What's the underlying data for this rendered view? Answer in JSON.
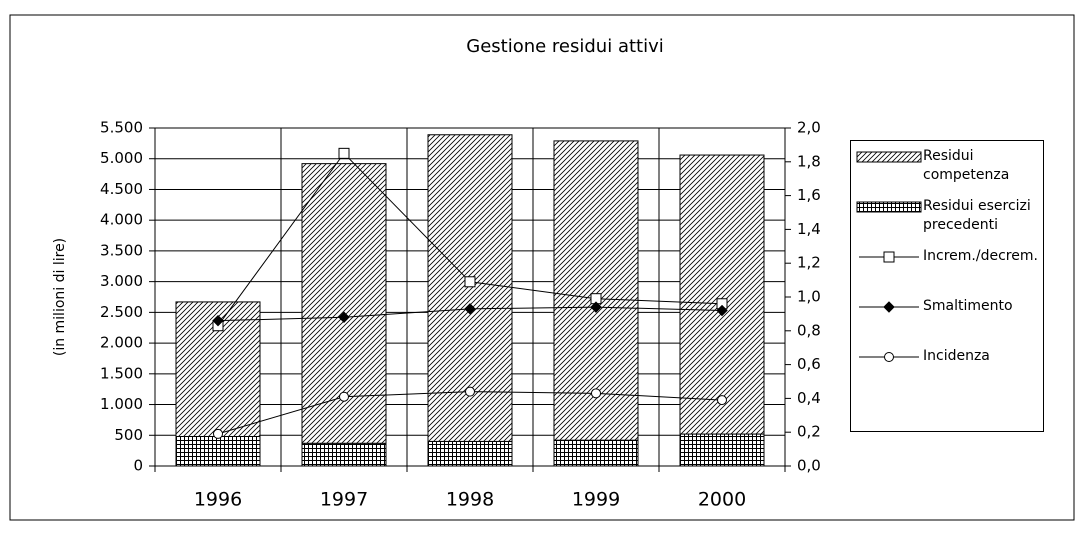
{
  "chart_data": {
    "type": "bar",
    "title": "Gestione residui attivi",
    "y_label": "(in milioni di lire)",
    "categories": [
      "1996",
      "1997",
      "1998",
      "1999",
      "2000"
    ],
    "series": [
      {
        "name": "Residui competenza",
        "type": "bar",
        "pattern": "hatch",
        "color": "#000000",
        "values": [
          2190,
          4550,
          4990,
          4870,
          4540
        ]
      },
      {
        "name": "Residui esercizi precedenti",
        "type": "bar",
        "pattern": "grid",
        "color": "#000000",
        "values": [
          480,
          370,
          400,
          420,
          520
        ]
      },
      {
        "name": "Increm./decrem.",
        "type": "line",
        "marker": "square",
        "axis": "y2",
        "color": "#000000",
        "values": [
          0.83,
          1.85,
          1.09,
          0.99,
          0.96
        ]
      },
      {
        "name": "Smaltimento",
        "type": "line",
        "marker": "diamond",
        "axis": "y2",
        "color": "#000000",
        "values": [
          0.86,
          0.88,
          0.93,
          0.94,
          0.92
        ]
      },
      {
        "name": "Incidenza",
        "type": "line",
        "marker": "circle",
        "axis": "y2",
        "color": "#000000",
        "values": [
          0.19,
          0.41,
          0.44,
          0.43,
          0.39
        ]
      }
    ],
    "ylim": [
      0,
      5500
    ],
    "yticks": [
      0,
      500,
      {
        "value": 1000,
        "label": "1.000"
      },
      {
        "value": 1500,
        "label": "1.500"
      },
      {
        "value": 2000,
        "label": "2.000"
      },
      {
        "value": 2500,
        "label": "2.500"
      },
      {
        "value": 3000,
        "label": "3.000"
      },
      {
        "value": 3500,
        "label": "3.500"
      },
      {
        "value": 4000,
        "label": "4.000"
      },
      {
        "value": 4500,
        "label": "4.500"
      },
      {
        "value": 5000,
        "label": "5.000"
      },
      {
        "value": 5500,
        "label": "5.500"
      }
    ],
    "y2lim": [
      0,
      2
    ],
    "y2ticks": [
      {
        "value": 0,
        "label": "0,0"
      },
      {
        "value": 0.2,
        "label": "0,2"
      },
      {
        "value": 0.4,
        "label": "0,4"
      },
      {
        "value": 0.6,
        "label": "0,6"
      },
      {
        "value": 0.8,
        "label": "0,8"
      },
      {
        "value": 1.0,
        "label": "1,0"
      },
      {
        "value": 1.2,
        "label": "1,2"
      },
      {
        "value": 1.4,
        "label": "1,4"
      },
      {
        "value": 1.6,
        "label": "1,6"
      },
      {
        "value": 1.8,
        "label": "1,8"
      },
      {
        "value": 2.0,
        "label": "2,0"
      }
    ],
    "grid": true,
    "legend": "right"
  }
}
